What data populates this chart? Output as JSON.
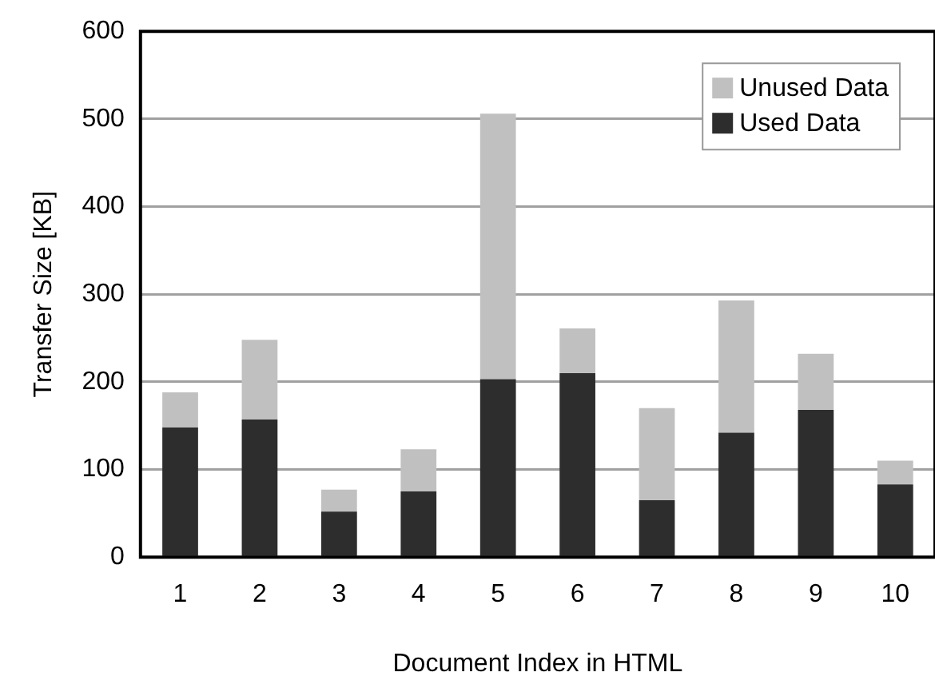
{
  "chart_data": {
    "type": "bar",
    "stacked": true,
    "xlabel": "Document Index in HTML",
    "ylabel": "Transfer Size [KB]",
    "categories": [
      "1",
      "2",
      "3",
      "4",
      "5",
      "6",
      "7",
      "8",
      "9",
      "10"
    ],
    "series": [
      {
        "name": "Used Data",
        "color": "#2d2d2d",
        "values": [
          148,
          157,
          52,
          75,
          203,
          210,
          65,
          142,
          168,
          83
        ]
      },
      {
        "name": "Unused Data",
        "color": "#c0c0c0",
        "values": [
          40,
          91,
          25,
          48,
          303,
          51,
          105,
          151,
          64,
          27
        ]
      }
    ],
    "ylim": [
      0,
      600
    ],
    "yticks": [
      0,
      100,
      200,
      300,
      400,
      500,
      600
    ],
    "grid": "y",
    "legend": "top right"
  }
}
